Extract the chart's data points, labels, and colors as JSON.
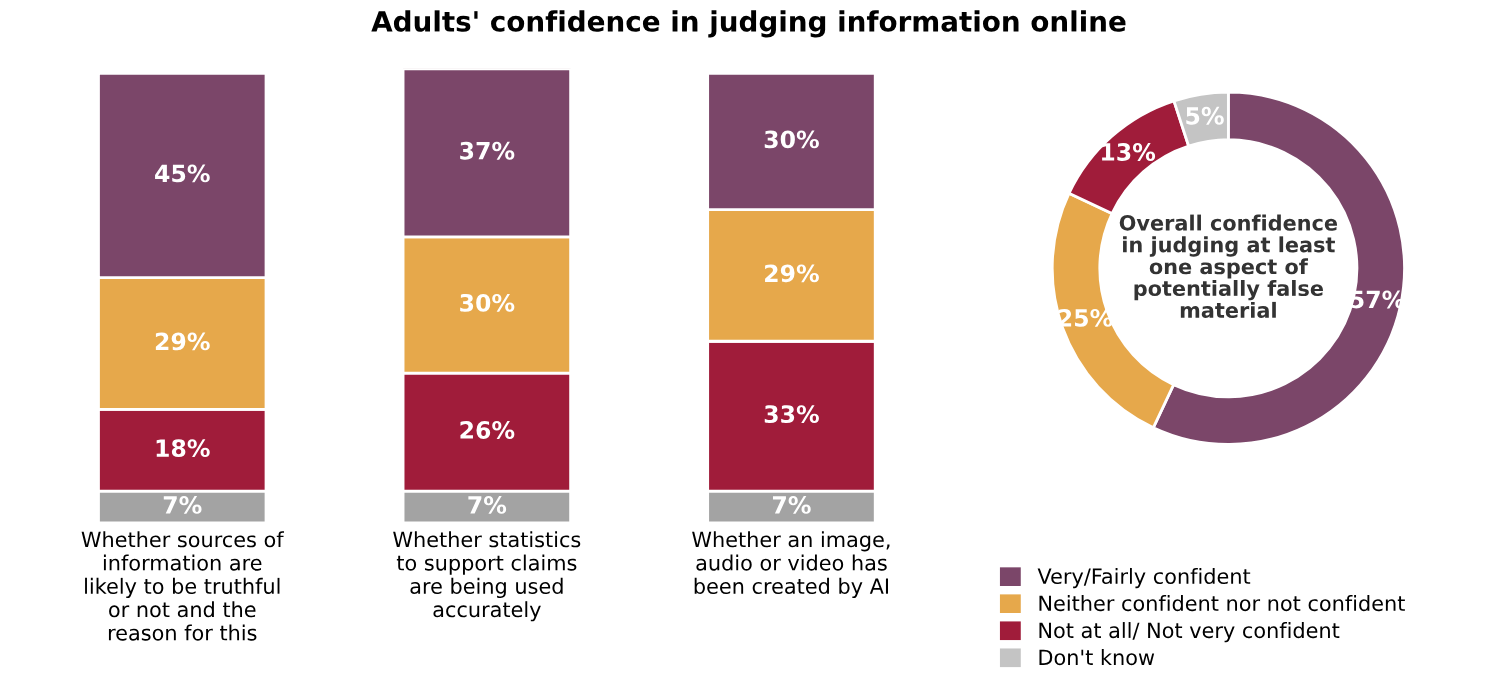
{
  "chart_data": [
    {
      "type": "bar",
      "title": "Adults' confidence in judging information online",
      "stacked": true,
      "categories": [
        "Whether sources of\ninformation are\nlikely to be truthful\nor not and the\nreason for this",
        "Whether statistics\nto support claims\nare being used\naccurately",
        "Whether an image,\naudio or video has\nbeen created by AI"
      ],
      "series": [
        {
          "color": "#a3a3a3",
          "values": [
            7,
            7,
            7
          ],
          "value_labels": [
            "7%",
            "7%",
            "7%"
          ]
        },
        {
          "color": "#a01c3a",
          "values": [
            18,
            26,
            33
          ],
          "value_labels": [
            "18%",
            "26%",
            "33%"
          ]
        },
        {
          "color": "#e6a84b",
          "values": [
            29,
            30,
            29
          ],
          "value_labels": [
            "29%",
            "30%",
            "29%"
          ]
        },
        {
          "color": "#7b4669",
          "values": [
            45,
            37,
            30
          ],
          "value_labels": [
            "45%",
            "37%",
            "30%"
          ]
        }
      ]
    },
    {
      "type": "donut",
      "legend": "bottom",
      "annotations": [
        "Overall confidence\nin judging at least\none aspect of\npotentially false\nmaterial"
      ],
      "categories": [
        "Very/Fairly confident",
        "Neither confident nor not confident",
        "Not at all/ Not very confident",
        "Don't know"
      ],
      "values": [
        57,
        25,
        13,
        5
      ],
      "value_labels": [
        "57%",
        "25%",
        "13%",
        "5%"
      ],
      "colors": [
        "#7b4669",
        "#e6a84b",
        "#a01c3a",
        "#c4c4c4"
      ]
    }
  ]
}
